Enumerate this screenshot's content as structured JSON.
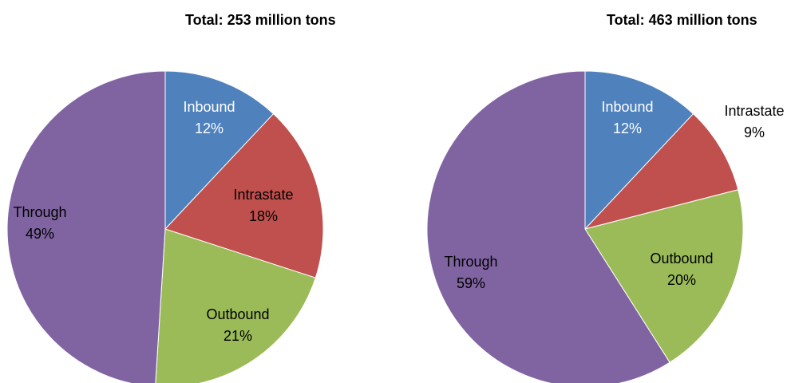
{
  "chart_data": [
    {
      "type": "pie",
      "title": "Total: 253 million tons",
      "slices": [
        {
          "label": "Inbound",
          "value": 12,
          "value_label": "12%",
          "color": "#4F81BD",
          "label_color": "#ffffff"
        },
        {
          "label": "Intrastate",
          "value": 18,
          "value_label": "18%",
          "color": "#C0504D",
          "label_color": "#000000"
        },
        {
          "label": "Outbound",
          "value": 21,
          "value_label": "21%",
          "color": "#9BBB59",
          "label_color": "#000000"
        },
        {
          "label": "Through",
          "value": 49,
          "value_label": "49%",
          "color": "#8064A2",
          "label_color": "#000000"
        }
      ],
      "start": "12 o'clock",
      "direction": "clockwise",
      "legend": "none"
    },
    {
      "type": "pie",
      "title": "Total: 463 million tons",
      "slices": [
        {
          "label": "Inbound",
          "value": 12,
          "value_label": "12%",
          "color": "#4F81BD",
          "label_color": "#ffffff"
        },
        {
          "label": "Intrastate",
          "value": 9,
          "value_label": "9%",
          "color": "#C0504D",
          "label_color": "#000000"
        },
        {
          "label": "Outbound",
          "value": 20,
          "value_label": "20%",
          "color": "#9BBB59",
          "label_color": "#000000"
        },
        {
          "label": "Through",
          "value": 59,
          "value_label": "59%",
          "color": "#8064A2",
          "label_color": "#000000"
        }
      ],
      "start": "12 o'clock",
      "direction": "clockwise",
      "legend": "none"
    }
  ]
}
